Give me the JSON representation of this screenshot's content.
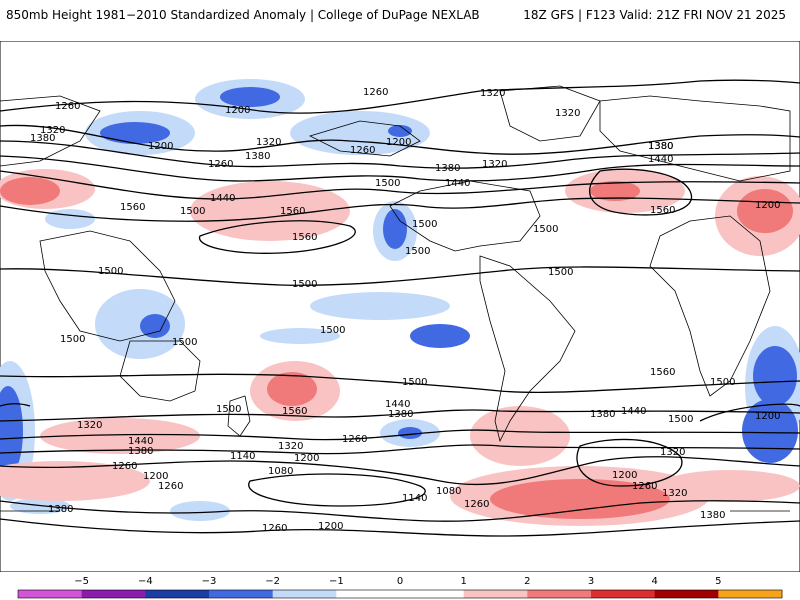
{
  "header": {
    "left_title": "850mb Height 1981−2010 Standardized Anomaly | College of DuPage NEXLAB",
    "right_title": "18Z GFS | F123 Valid: 21Z FRI NOV 21 2025"
  },
  "contour_labels": [
    "1260",
    "1200",
    "1320",
    "1380",
    "1200",
    "1320",
    "1380",
    "1260",
    "1320",
    "1200",
    "1260",
    "1320",
    "1380",
    "1440",
    "1320",
    "1380",
    "1260",
    "1200",
    "1380",
    "1440",
    "1500",
    "1560",
    "1500",
    "1440",
    "1560",
    "1560",
    "1500",
    "1500",
    "1500",
    "1500",
    "1500",
    "1500",
    "1500",
    "1500",
    "1500",
    "1560",
    "1500",
    "1560",
    "1560",
    "1500",
    "1440",
    "1380",
    "1500",
    "1380",
    "1440",
    "1500",
    "1320",
    "1440",
    "1380",
    "1260",
    "1320",
    "1260",
    "1140",
    "1200",
    "1080",
    "1260",
    "1200",
    "1200",
    "1080",
    "1140",
    "1260",
    "1200",
    "1320",
    "1260",
    "1380",
    "1260",
    "1200",
    "1320",
    "1380"
  ],
  "colors": {
    "neg5": "#d255d8",
    "neg4": "#8c1cae",
    "neg3": "#1c3ea4",
    "neg2": "#4169e1",
    "neg1": "#c3dbf9",
    "zero": "#ffffff",
    "pos1": "#f9c3c3",
    "pos2": "#f07a7a",
    "pos3": "#dc2f2f",
    "pos4": "#a00000",
    "pos5": "#f7a21d"
  },
  "legend": {
    "ticks": [
      "−5",
      "−4",
      "−3",
      "−2",
      "−1",
      "0",
      "1",
      "2",
      "3",
      "4",
      "5"
    ]
  }
}
